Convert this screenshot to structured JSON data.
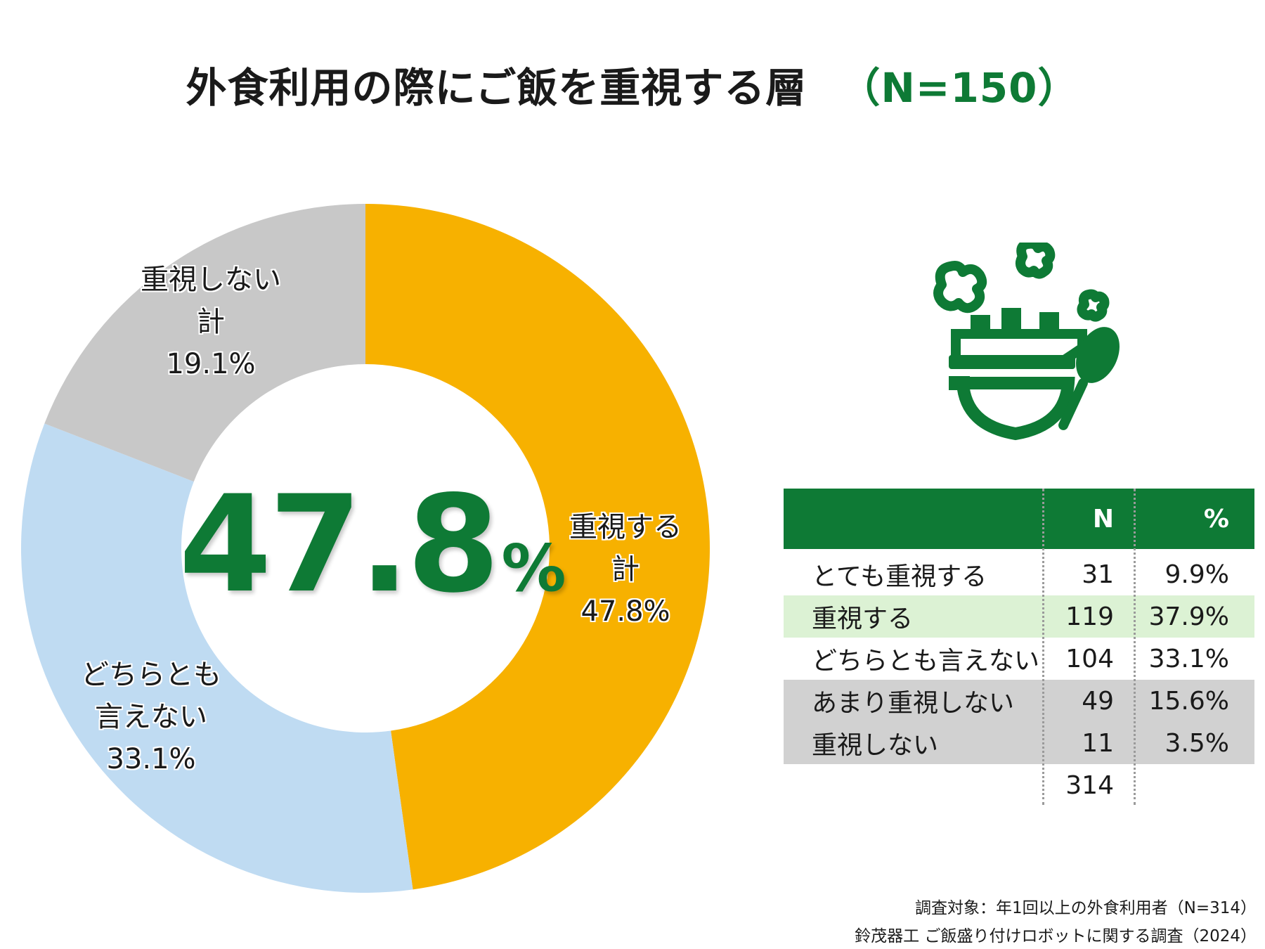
{
  "title": {
    "main": "外食利用の際にご飯を重視する層",
    "n_label": "（N=150）"
  },
  "center": {
    "value": "47.8",
    "unit": "%"
  },
  "chart_data": {
    "type": "pie",
    "style": "donut",
    "categories": [
      "重視する計",
      "どちらとも言えない",
      "重視しない計"
    ],
    "values": [
      47.8,
      33.1,
      19.1
    ],
    "colors": [
      "#f7b100",
      "#bfdbf2",
      "#c8c8c8"
    ],
    "slice_labels": [
      {
        "lines": [
          "重視する",
          "計",
          "47.8%"
        ]
      },
      {
        "lines": [
          "どちらとも",
          "言えない",
          "33.1%"
        ]
      },
      {
        "lines": [
          "重視しない",
          "計",
          "19.1%"
        ]
      }
    ]
  },
  "icon": "rice-bowl-with-steam-and-paddle-icon",
  "table": {
    "headers": [
      "",
      "N",
      "%"
    ],
    "rows": [
      {
        "label": "とても重視する",
        "n": "31",
        "pct": "9.9%",
        "bg": "none"
      },
      {
        "label": "重視する",
        "n": "119",
        "pct": "37.9%",
        "bg": "light-green"
      },
      {
        "label": "どちらとも言えない",
        "n": "104",
        "pct": "33.1%",
        "bg": "none"
      },
      {
        "label": "あまり重視しない",
        "n": "49",
        "pct": "15.6%",
        "bg": "gray"
      },
      {
        "label": "重視しない",
        "n": "11",
        "pct": "3.5%",
        "bg": "gray"
      }
    ],
    "total": "314"
  },
  "footnotes": {
    "target": "調査対象：年1回以上の外食利用者（N=314）",
    "source": "鈴茂器工 ご飯盛り付けロボットに関する調査（2024）"
  },
  "colors": {
    "accent_green": "#0e7a35",
    "orange": "#f7b100",
    "light_blue": "#bfdbf2",
    "gray": "#c8c8c8",
    "table_highlight": "#dcf2d4",
    "table_gray": "#d1d1d1"
  }
}
